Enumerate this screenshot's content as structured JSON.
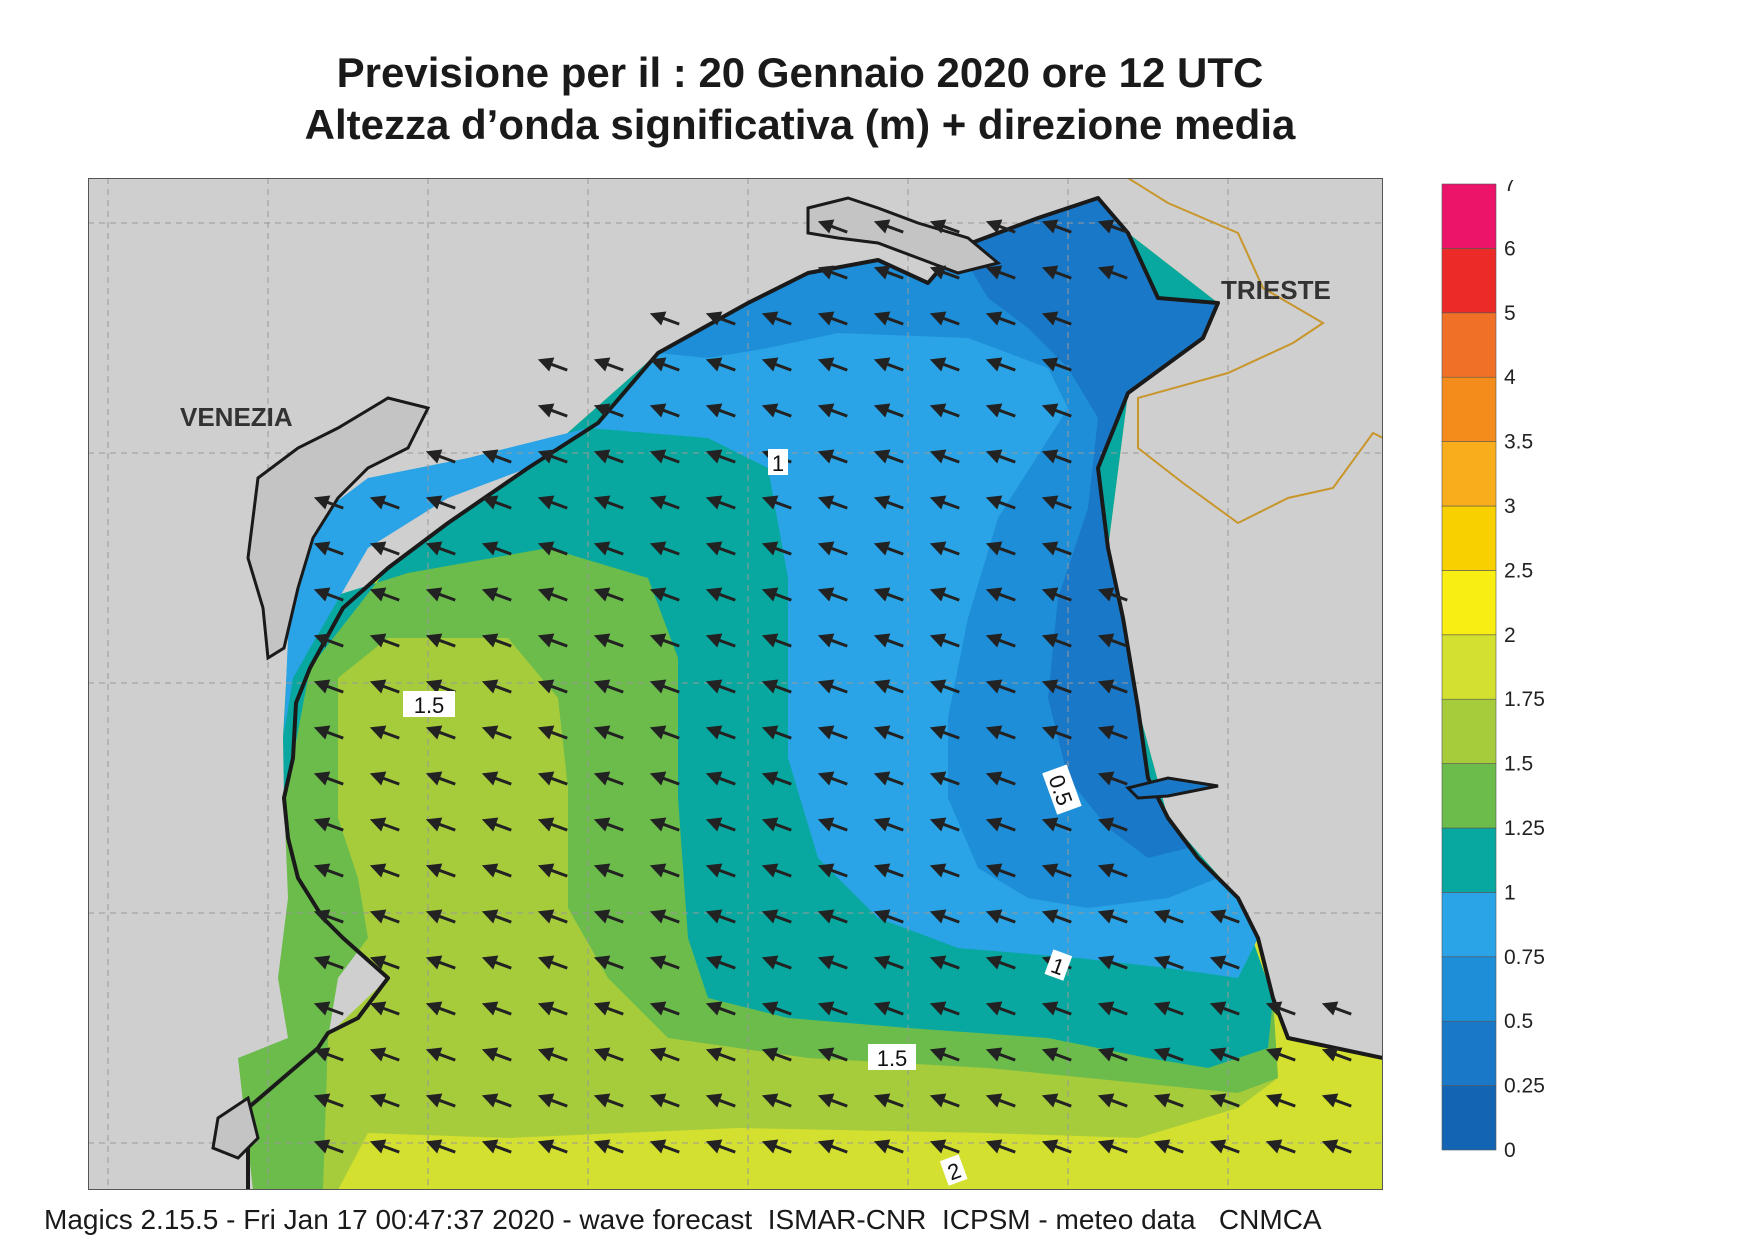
{
  "title_line1": "Previsione per il  :  20  Gennaio  2020   ore 12 UTC",
  "title_line2": "Altezza d’onda significativa (m) + direzione media",
  "places": {
    "venezia": "VENEZIA",
    "trieste": "TRIESTE"
  },
  "contour_labels": [
    "1",
    "1.5",
    "0.5",
    "1",
    "1.5",
    "2"
  ],
  "legend": {
    "ticks": [
      "0",
      "0.25",
      "0.5",
      "0.75",
      "1",
      "1.25",
      "1.5",
      "1.75",
      "2",
      "2.5",
      "3",
      "3.5",
      "4",
      "5",
      "6",
      "7"
    ],
    "colors": [
      "#1464b4",
      "#1a78c8",
      "#1e8ed8",
      "#2aa4e6",
      "#08a8a0",
      "#6cbc4c",
      "#a6cc3c",
      "#d4e030",
      "#f8ee14",
      "#f8d000",
      "#f8ae1c",
      "#f48c1c",
      "#f07028",
      "#ec2a28",
      "#ec1468"
    ]
  },
  "footer": "Magics 2.15.5 - Fri Jan 17 00:47:37 2020 - wave forecast  ISMAR-CNR  ICPSM - meteo data   CNMCA",
  "colors": {
    "land": "#cfcfcf",
    "coast": "#1a1a1a",
    "border": "#c8962a",
    "arrow": "#222222"
  }
}
